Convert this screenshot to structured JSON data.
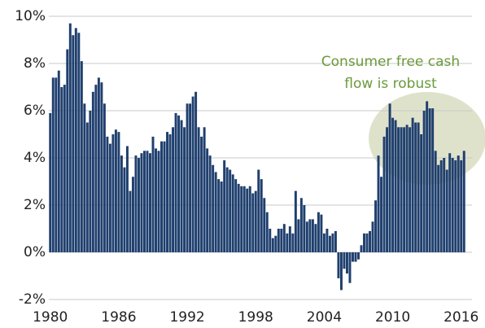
{
  "chart_data": {
    "type": "bar",
    "annotation": [
      "Consumer free cash",
      "flow is robust"
    ],
    "categories": [
      "1980",
      null,
      null,
      null,
      null,
      null,
      null,
      null,
      null,
      null,
      null,
      null,
      null,
      null,
      null,
      null,
      null,
      null,
      null,
      null,
      null,
      null,
      null,
      null,
      "1986",
      null,
      null,
      null,
      null,
      null,
      null,
      null,
      null,
      null,
      null,
      null,
      null,
      null,
      null,
      null,
      null,
      null,
      null,
      null,
      null,
      null,
      null,
      null,
      "1992",
      null,
      null,
      null,
      null,
      null,
      null,
      null,
      null,
      null,
      null,
      null,
      null,
      null,
      null,
      null,
      null,
      null,
      null,
      null,
      null,
      null,
      null,
      null,
      "1998",
      null,
      null,
      null,
      null,
      null,
      null,
      null,
      null,
      null,
      null,
      null,
      null,
      null,
      null,
      null,
      null,
      null,
      null,
      null,
      null,
      null,
      null,
      null,
      "2004",
      null,
      null,
      null,
      null,
      null,
      null,
      null,
      null,
      null,
      null,
      null,
      null,
      null,
      null,
      null,
      null,
      null,
      null,
      null,
      null,
      null,
      null,
      null,
      "2010",
      null,
      null,
      null,
      null,
      null,
      null,
      null,
      null,
      null,
      null,
      null,
      null,
      null,
      null,
      null,
      null,
      null,
      null,
      null,
      null,
      null,
      null,
      null,
      "2016",
      null
    ],
    "values": [
      5.9,
      7.4,
      7.4,
      7.7,
      7.0,
      7.1,
      8.6,
      9.7,
      9.2,
      9.5,
      9.3,
      8.1,
      6.3,
      5.5,
      6.0,
      6.8,
      7.1,
      7.4,
      7.2,
      6.3,
      4.9,
      4.6,
      5.0,
      5.2,
      5.1,
      4.1,
      3.6,
      4.5,
      2.6,
      3.2,
      4.1,
      4.0,
      4.2,
      4.3,
      4.3,
      4.2,
      4.9,
      4.4,
      4.3,
      4.7,
      4.7,
      5.1,
      5.0,
      5.3,
      5.9,
      5.8,
      5.6,
      5.3,
      6.3,
      6.3,
      6.6,
      6.8,
      5.3,
      4.9,
      5.3,
      4.4,
      4.1,
      3.7,
      3.4,
      3.1,
      3.0,
      3.9,
      3.6,
      3.5,
      3.3,
      3.1,
      2.9,
      2.8,
      2.8,
      2.7,
      2.8,
      2.5,
      2.6,
      3.5,
      3.1,
      2.3,
      1.7,
      1.0,
      0.6,
      0.7,
      1.0,
      1.0,
      1.2,
      0.8,
      1.1,
      0.8,
      2.6,
      1.4,
      2.3,
      2.0,
      1.3,
      1.4,
      1.4,
      1.2,
      1.7,
      1.6,
      0.8,
      1.0,
      0.7,
      0.8,
      0.9,
      -1.1,
      -1.6,
      -0.7,
      -0.9,
      -1.3,
      -0.4,
      -0.4,
      -0.3,
      0.3,
      0.8,
      0.8,
      0.9,
      1.3,
      2.2,
      4.1,
      3.2,
      4.9,
      5.3,
      6.3,
      5.7,
      5.6,
      5.3,
      5.3,
      5.3,
      5.4,
      5.3,
      5.7,
      5.5,
      5.5,
      5.0,
      6.0,
      6.4,
      6.1,
      6.1,
      4.3,
      3.7,
      3.9,
      4.0,
      3.5,
      4.2,
      4.0,
      3.9,
      4.1,
      3.9,
      4.3
    ],
    "color": "#1f3f6e",
    "ylim": [
      -2,
      10
    ],
    "yticks": [
      {
        "value": -2,
        "label": "-2%"
      },
      {
        "value": 0,
        "label": "0%"
      },
      {
        "value": 2,
        "label": "2%"
      },
      {
        "value": 4,
        "label": "4%"
      },
      {
        "value": 6,
        "label": "6%"
      },
      {
        "value": 8,
        "label": "8%"
      },
      {
        "value": 10,
        "label": "10%"
      }
    ],
    "grid": true
  }
}
